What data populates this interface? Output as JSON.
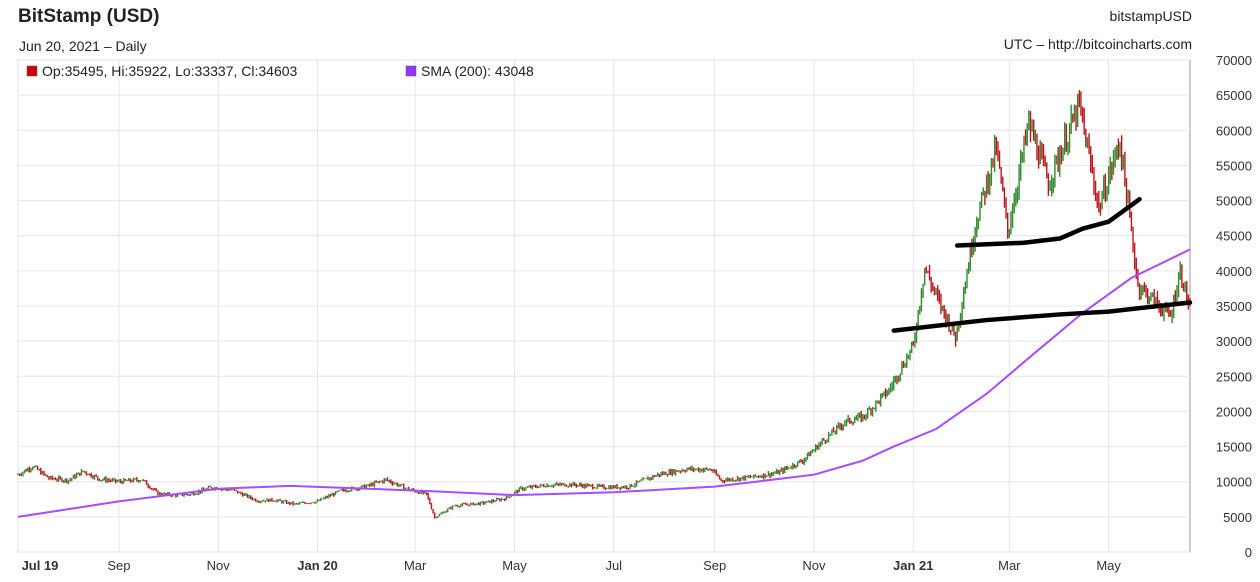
{
  "header": {
    "title": "BitStamp (USD)",
    "subtitle": "Jun 20, 2021 – Daily",
    "symbol": "bitstampUSD",
    "source": "UTC – http://bitcoincharts.com"
  },
  "legend": {
    "ohlc_label": "Op:35495, Hi:35922, Lo:33337, Cl:34603",
    "sma_label": "SMA (200): 43048",
    "ohlc_color": "#cc0000",
    "sma_color": "#9933ff"
  },
  "colors": {
    "up": "#2e8b2e",
    "down": "#c0141c",
    "sma": "#a64dff",
    "annotation": "#000000",
    "grid": "#e6e6e6"
  },
  "chart_data": {
    "type": "line",
    "ylim": [
      0,
      70000
    ],
    "grid": true,
    "y_ticks": [
      0,
      5000,
      10000,
      15000,
      20000,
      25000,
      30000,
      35000,
      40000,
      45000,
      50000,
      55000,
      60000,
      65000,
      70000
    ],
    "x_ticks": [
      {
        "label": "Jul 19",
        "date": "2019-07-01",
        "bold": true
      },
      {
        "label": "Sep",
        "date": "2019-09-01",
        "bold": false
      },
      {
        "label": "Nov",
        "date": "2019-11-01",
        "bold": false
      },
      {
        "label": "Jan 20",
        "date": "2020-01-01",
        "bold": true
      },
      {
        "label": "Mar",
        "date": "2020-03-01",
        "bold": false
      },
      {
        "label": "May",
        "date": "2020-05-01",
        "bold": false
      },
      {
        "label": "Jul",
        "date": "2020-07-01",
        "bold": false
      },
      {
        "label": "Sep",
        "date": "2020-09-01",
        "bold": false
      },
      {
        "label": "Nov",
        "date": "2020-11-01",
        "bold": false
      },
      {
        "label": "Jan 21",
        "date": "2021-01-01",
        "bold": true
      },
      {
        "label": "Mar",
        "date": "2021-03-01",
        "bold": false
      },
      {
        "label": "May",
        "date": "2021-05-01",
        "bold": false
      }
    ],
    "x_range": [
      "2019-07-01",
      "2021-06-20"
    ],
    "series": [
      {
        "name": "Close",
        "style": "ohlc",
        "points": [
          [
            "2019-07-01",
            11000
          ],
          [
            "2019-07-10",
            12200
          ],
          [
            "2019-07-20",
            10500
          ],
          [
            "2019-08-01",
            10200
          ],
          [
            "2019-08-10",
            11500
          ],
          [
            "2019-08-20",
            10400
          ],
          [
            "2019-09-01",
            10000
          ],
          [
            "2019-09-15",
            10300
          ],
          [
            "2019-09-25",
            8300
          ],
          [
            "2019-10-05",
            8100
          ],
          [
            "2019-10-15",
            8200
          ],
          [
            "2019-10-28",
            9200
          ],
          [
            "2019-11-10",
            8800
          ],
          [
            "2019-11-25",
            7300
          ],
          [
            "2019-12-05",
            7400
          ],
          [
            "2019-12-18",
            6800
          ],
          [
            "2020-01-01",
            7200
          ],
          [
            "2020-01-15",
            8700
          ],
          [
            "2020-02-01",
            9400
          ],
          [
            "2020-02-12",
            10300
          ],
          [
            "2020-02-25",
            9000
          ],
          [
            "2020-03-08",
            8200
          ],
          [
            "2020-03-13",
            4900
          ],
          [
            "2020-03-25",
            6600
          ],
          [
            "2020-04-10",
            6900
          ],
          [
            "2020-04-25",
            7600
          ],
          [
            "2020-05-05",
            9000
          ],
          [
            "2020-05-20",
            9500
          ],
          [
            "2020-06-05",
            9600
          ],
          [
            "2020-06-25",
            9200
          ],
          [
            "2020-07-10",
            9300
          ],
          [
            "2020-07-28",
            11000
          ],
          [
            "2020-08-15",
            11800
          ],
          [
            "2020-08-30",
            11700
          ],
          [
            "2020-09-05",
            10200
          ],
          [
            "2020-09-25",
            10700
          ],
          [
            "2020-10-10",
            11300
          ],
          [
            "2020-10-25",
            13000
          ],
          [
            "2020-11-05",
            15500
          ],
          [
            "2020-11-20",
            18500
          ],
          [
            "2020-12-01",
            19200
          ],
          [
            "2020-12-17",
            23000
          ],
          [
            "2021-01-01",
            29300
          ],
          [
            "2021-01-08",
            40500
          ],
          [
            "2021-01-15",
            36500
          ],
          [
            "2021-01-27",
            30500
          ],
          [
            "2021-02-08",
            46500
          ],
          [
            "2021-02-21",
            57500
          ],
          [
            "2021-02-28",
            45500
          ],
          [
            "2021-03-13",
            61000
          ],
          [
            "2021-03-25",
            52500
          ],
          [
            "2021-04-13",
            63500
          ],
          [
            "2021-04-25",
            49000
          ],
          [
            "2021-05-08",
            58500
          ],
          [
            "2021-05-19",
            38000
          ],
          [
            "2021-05-30",
            35500
          ],
          [
            "2021-06-08",
            33500
          ],
          [
            "2021-06-14",
            40000
          ],
          [
            "2021-06-20",
            34603
          ]
        ]
      },
      {
        "name": "SMA (200)",
        "style": "line",
        "points": [
          [
            "2019-07-01",
            5000
          ],
          [
            "2019-09-01",
            7200
          ],
          [
            "2019-11-01",
            9000
          ],
          [
            "2019-12-15",
            9400
          ],
          [
            "2020-02-01",
            9000
          ],
          [
            "2020-03-15",
            8600
          ],
          [
            "2020-05-01",
            8100
          ],
          [
            "2020-07-01",
            8500
          ],
          [
            "2020-09-01",
            9300
          ],
          [
            "2020-11-01",
            11000
          ],
          [
            "2020-12-01",
            13000
          ],
          [
            "2020-12-20",
            15000
          ],
          [
            "2021-01-15",
            17500
          ],
          [
            "2021-02-15",
            22500
          ],
          [
            "2021-03-15",
            28000
          ],
          [
            "2021-04-15",
            34000
          ],
          [
            "2021-05-15",
            39000
          ],
          [
            "2021-06-20",
            43048
          ]
        ]
      }
    ],
    "annotations": [
      {
        "kind": "trendline",
        "points": [
          [
            "2020-12-20",
            31500
          ],
          [
            "2021-02-15",
            33000
          ],
          [
            "2021-04-01",
            33800
          ],
          [
            "2021-05-01",
            34200
          ],
          [
            "2021-06-20",
            35500
          ]
        ]
      },
      {
        "kind": "trendline",
        "points": [
          [
            "2021-01-28",
            43600
          ],
          [
            "2021-03-10",
            44000
          ],
          [
            "2021-04-01",
            44600
          ],
          [
            "2021-04-15",
            46000
          ],
          [
            "2021-05-01",
            47000
          ],
          [
            "2021-05-20",
            50200
          ]
        ]
      }
    ]
  }
}
